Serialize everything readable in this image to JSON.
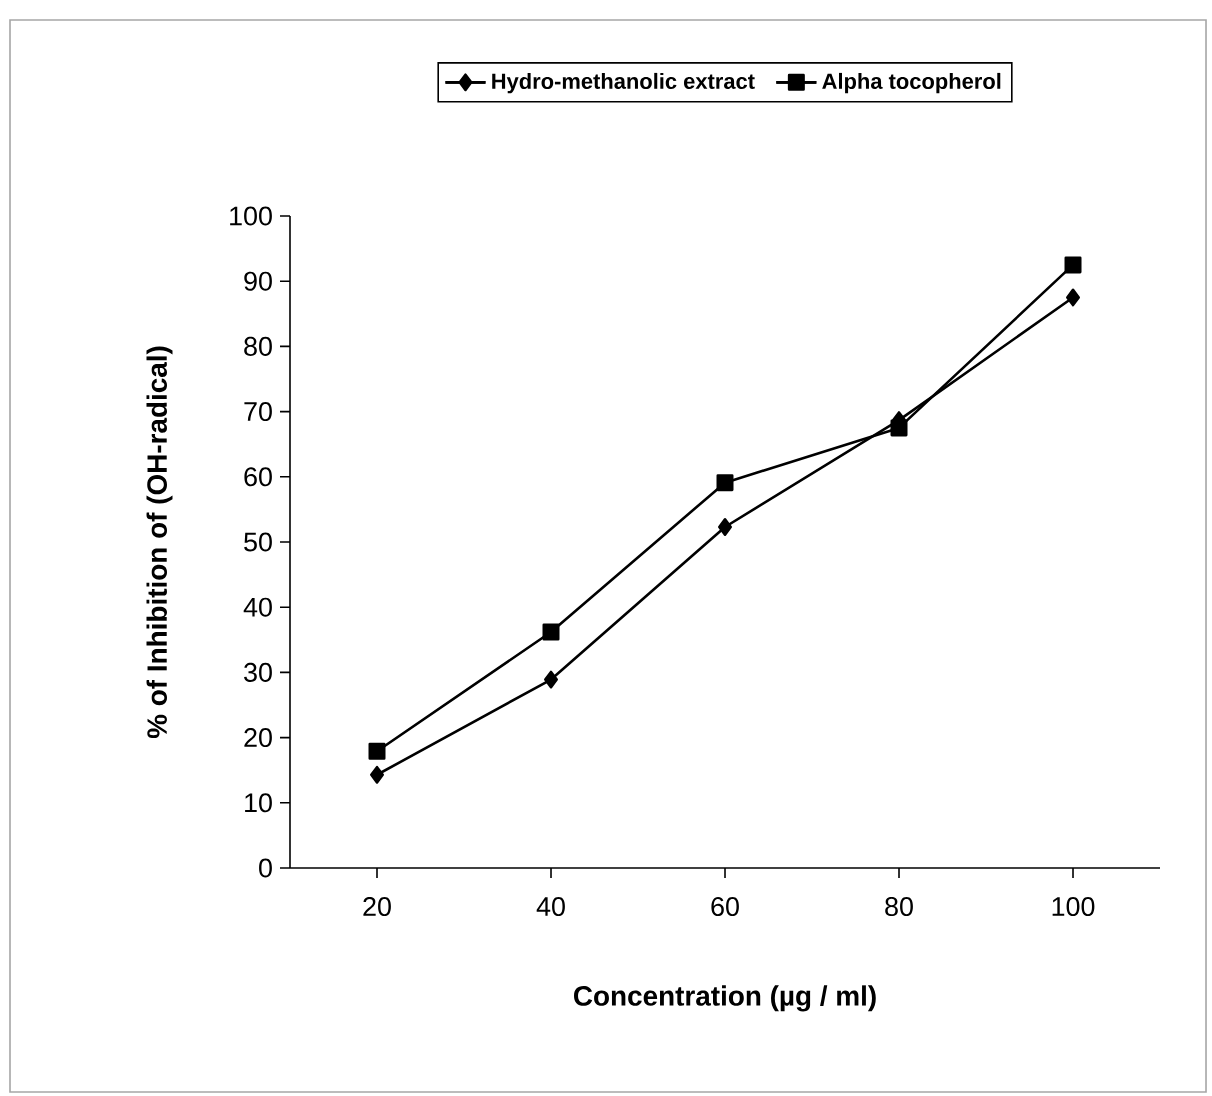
{
  "chart_data": {
    "type": "line",
    "xlabel": "Concentration (µg / ml)",
    "ylabel": "% of Inhibition of (OH-radical)",
    "categories": [
      "20",
      "40",
      "60",
      "80",
      "100"
    ],
    "series": [
      {
        "name": "Hydro-methanolic  extract",
        "color": "#000000",
        "marker": "diamond",
        "values": [
          14.3,
          28.9,
          52.3,
          68.7,
          87.5
        ]
      },
      {
        "name": "Alpha tocopherol",
        "color": "#000000",
        "marker": "square",
        "values": [
          17.9,
          36.2,
          59.1,
          67.5,
          92.5
        ]
      }
    ],
    "ylim": [
      0,
      100
    ],
    "yticks": [
      0,
      10,
      20,
      30,
      40,
      50,
      60,
      70,
      80,
      90,
      100
    ],
    "grid": false,
    "legend": "top",
    "line_style": "solid"
  }
}
